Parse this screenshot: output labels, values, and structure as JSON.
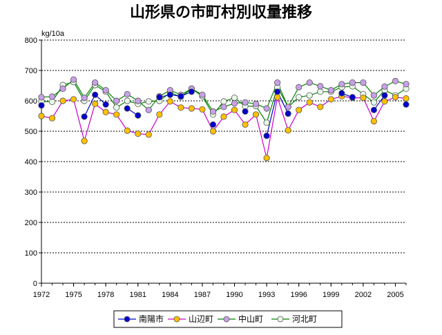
{
  "chart_data": {
    "type": "line",
    "title": "山形県の市町村別収量推移",
    "ylabel": "kg/10a",
    "xlabel": "",
    "ylim": [
      0,
      800
    ],
    "yticks": [
      0,
      100,
      200,
      300,
      400,
      500,
      600,
      700,
      800
    ],
    "xlim": [
      1972,
      2006
    ],
    "xticks": [
      1972,
      1975,
      1978,
      1981,
      1984,
      1987,
      1990,
      1993,
      1996,
      1999,
      2002,
      2005
    ],
    "grid": "horizontal-dotted",
    "legend_position": "bottom",
    "x": [
      1972,
      1973,
      1974,
      1975,
      1976,
      1977,
      1978,
      1979,
      1980,
      1981,
      1982,
      1983,
      1984,
      1985,
      1986,
      1987,
      1988,
      1989,
      1990,
      1991,
      1992,
      1993,
      1994,
      1995,
      1996,
      1997,
      1998,
      1999,
      2000,
      2001,
      2002,
      2003,
      2004,
      2005,
      2006
    ],
    "series": [
      {
        "name": "南陽市",
        "color": "#0000cc",
        "marker": "#0000cc",
        "values": [
          585,
          null,
          null,
          null,
          548,
          620,
          588,
          null,
          575,
          552,
          null,
          612,
          620,
          615,
          630,
          null,
          522,
          null,
          null,
          565,
          null,
          485,
          630,
          558,
          null,
          null,
          null,
          null,
          625,
          612,
          null,
          570,
          618,
          null,
          588
        ]
      },
      {
        "name": "山辺町",
        "color": "#cc00cc",
        "marker": "#ffc000",
        "values": [
          550,
          543,
          600,
          605,
          468,
          590,
          563,
          555,
          502,
          492,
          489,
          555,
          598,
          578,
          575,
          572,
          500,
          548,
          570,
          522,
          555,
          412,
          612,
          503,
          570,
          595,
          580,
          605,
          615,
          610,
          610,
          533,
          598,
          612,
          608
        ]
      },
      {
        "name": "中山町",
        "color": "#008000",
        "marker": "#c8a0e8",
        "values": [
          612,
          614,
          640,
          670,
          610,
          660,
          635,
          600,
          622,
          600,
          570,
          615,
          635,
          620,
          640,
          620,
          565,
          580,
          592,
          595,
          590,
          575,
          660,
          580,
          645,
          660,
          648,
          635,
          655,
          660,
          660,
          618,
          647,
          665,
          655
        ]
      },
      {
        "name": "河北町",
        "color": "#008000",
        "marker": "#e8f8e8",
        "values": [
          598,
          597,
          652,
          662,
          600,
          652,
          630,
          578,
          600,
          590,
          598,
          600,
          627,
          613,
          640,
          615,
          555,
          598,
          610,
          582,
          583,
          528,
          645,
          580,
          612,
          618,
          630,
          630,
          645,
          648,
          622,
          595,
          635,
          618,
          640
        ]
      }
    ]
  }
}
